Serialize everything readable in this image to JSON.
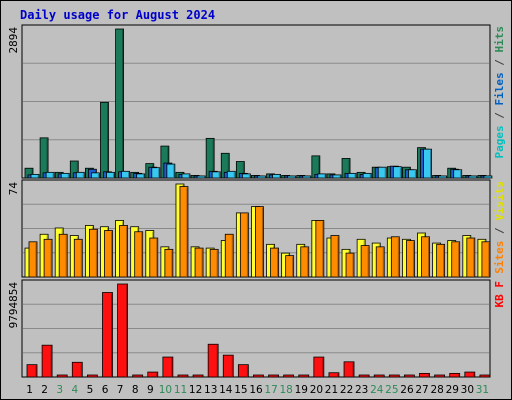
{
  "title": "Daily usage for August 2024",
  "chart_data": [
    {
      "type": "bar",
      "name": "hits-files-pages",
      "ymax_label": "2894",
      "ymax": 2894,
      "right_labels": [
        {
          "text": "Pages",
          "color": "#00c0c0"
        },
        {
          "text": " / ",
          "color": "#404040"
        },
        {
          "text": "Files",
          "color": "#0060c0"
        },
        {
          "text": " / ",
          "color": "#404040"
        },
        {
          "text": "Hits",
          "color": "#2e8b57"
        }
      ],
      "series": [
        {
          "name": "Hits",
          "color": "#1a7a5a",
          "values": [
            190,
            780,
            110,
            330,
            190,
            1470,
            2894,
            110,
            280,
            620,
            110,
            50,
            770,
            480,
            320,
            50,
            80,
            50,
            50,
            430,
            80,
            380,
            110,
            210,
            220,
            210,
            590,
            50,
            190,
            50,
            50
          ]
        },
        {
          "name": "Files",
          "color": "#1e5fd0",
          "values": [
            60,
            100,
            80,
            100,
            170,
            120,
            120,
            90,
            210,
            290,
            70,
            40,
            130,
            110,
            90,
            40,
            60,
            40,
            40,
            70,
            60,
            90,
            70,
            200,
            230,
            160,
            560,
            40,
            170,
            40,
            40
          ]
        },
        {
          "name": "Pages",
          "color": "#38c8f0",
          "values": [
            70,
            110,
            90,
            110,
            100,
            110,
            130,
            80,
            200,
            270,
            80,
            40,
            120,
            130,
            80,
            40,
            70,
            40,
            40,
            80,
            60,
            90,
            90,
            210,
            220,
            160,
            560,
            40,
            160,
            40,
            40
          ]
        }
      ]
    },
    {
      "type": "bar",
      "name": "visits-sites",
      "ymax_label": "74",
      "ymax": 74,
      "right_labels": [
        {
          "text": "Sites",
          "color": "#ff8000"
        },
        {
          "text": " / ",
          "color": "#404040"
        },
        {
          "text": "Visits",
          "color": "#e0e000"
        }
      ],
      "series": [
        {
          "name": "Visits",
          "color": "#ffff30",
          "values": [
            23,
            34,
            39,
            33,
            41,
            40,
            45,
            40,
            37,
            24,
            74,
            24,
            23,
            29,
            51,
            56,
            26,
            19,
            26,
            45,
            31,
            22,
            30,
            27,
            31,
            30,
            35,
            27,
            29,
            33,
            30
          ]
        },
        {
          "name": "Sites",
          "color": "#ff8c00",
          "values": [
            28,
            30,
            34,
            30,
            38,
            37,
            41,
            36,
            31,
            22,
            72,
            23,
            22,
            34,
            51,
            56,
            23,
            17,
            24,
            45,
            33,
            19,
            25,
            24,
            32,
            29,
            32,
            26,
            28,
            31,
            28
          ]
        }
      ]
    },
    {
      "type": "bar",
      "name": "kbytes",
      "ymax_label": "9794854",
      "ymax": 9794854,
      "right_labels": [
        {
          "text": "KB F",
          "color": "#ff0000"
        }
      ],
      "series": [
        {
          "name": "KB F",
          "color": "#ff1010",
          "values": [
            1300000,
            3350000,
            70000,
            1550000,
            70000,
            8900000,
            9794854,
            70000,
            520000,
            2100000,
            70000,
            70000,
            3450000,
            2300000,
            1300000,
            70000,
            70000,
            70000,
            70000,
            2100000,
            450000,
            1600000,
            70000,
            70000,
            70000,
            70000,
            380000,
            70000,
            380000,
            520000,
            70000
          ]
        }
      ]
    }
  ],
  "x_labels": [
    "1",
    "2",
    "3",
    "4",
    "5",
    "6",
    "7",
    "8",
    "9",
    "10",
    "11",
    "12",
    "13",
    "14",
    "15",
    "16",
    "17",
    "18",
    "19",
    "20",
    "21",
    "22",
    "23",
    "24",
    "25",
    "26",
    "27",
    "28",
    "29",
    "30",
    "31"
  ],
  "weekend_days": [
    3,
    4,
    10,
    11,
    17,
    18,
    24,
    25,
    31
  ]
}
